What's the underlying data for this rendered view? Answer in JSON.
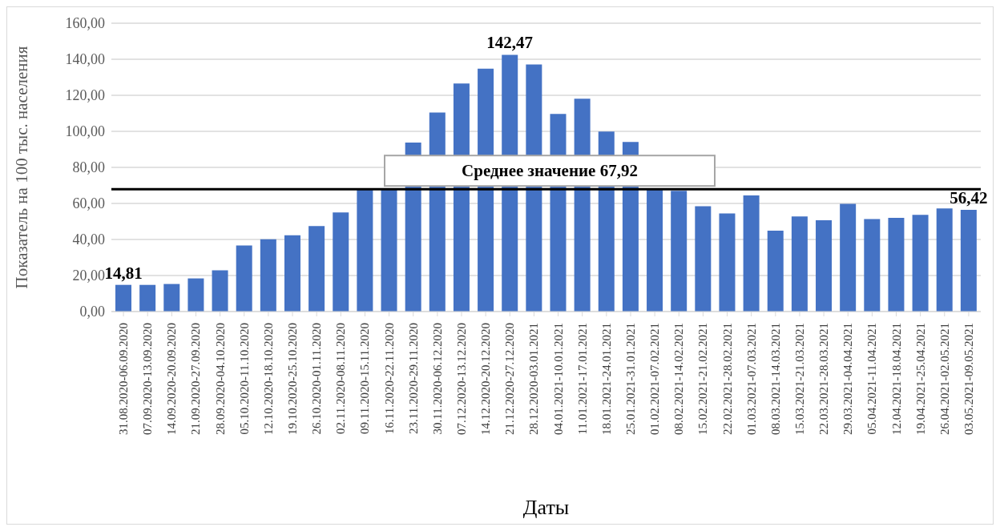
{
  "chart_data": {
    "type": "bar",
    "xlabel": "Даты",
    "ylabel": "Показатель на 100 тыс. населения",
    "categories": [
      "31.08.2020-06.09.2020",
      "07.09.2020-13.09.2020",
      "14.09.2020-20.09.2020",
      "21.09.2020-27.09.2020",
      "28.09.2020-04.10.2020",
      "05.10.2020-11.10.2020",
      "12.10.2020-18.10.2020",
      "19.10.2020-25.10.2020",
      "26.10.2020-01.11.2020",
      "02.11.2020-08.11.2020",
      "09.11.2020-15.11.2020",
      "16.11.2020-22.11.2020",
      "23.11.2020-29.11.2020",
      "30.11.2020-06.12.2020",
      "07.12.2020-13.12.2020",
      "14.12.2020-20.12.2020",
      "21.12.2020-27.12.2020",
      "28.12.2020-03.01.2021",
      "04.01.2021-10.01.2021",
      "11.01.2021-17.01.2021",
      "18.01.2021-24.01.2021",
      "25.01.2021-31.01.2021",
      "01.02.2021-07.02.2021",
      "08.02.2021-14.02.2021",
      "15.02.2021-21.02.2021",
      "22.02.2021-28.02.2021",
      "01.03.2021-07.03.2021",
      "08.03.2021-14.03.2021",
      "15.03.2021-21.03.2021",
      "22.03.2021-28.03.2021",
      "29.03.2021-04.04.2021",
      "05.04.2021-11.04.2021",
      "12.04.2021-18.04.2021",
      "19.04.2021-25.04.2021",
      "26.04.2021-02.05.2021",
      "03.05.2021-09.05.2021"
    ],
    "values": [
      14.81,
      14.8,
      15.3,
      18.4,
      22.9,
      36.7,
      40.1,
      42.3,
      47.4,
      55,
      68.2,
      68,
      93.8,
      110.5,
      126.6,
      134.8,
      142.47,
      137.1,
      109.7,
      118.1,
      99.9,
      94.1,
      68,
      67,
      58.4,
      54.5,
      64.5,
      44.9,
      52.8,
      50.7,
      59.8,
      51.3,
      52,
      53.7,
      57.2,
      56.42
    ],
    "value_labels": [
      "14,81",
      null,
      null,
      null,
      null,
      null,
      null,
      null,
      null,
      null,
      null,
      null,
      null,
      null,
      null,
      null,
      "142,47",
      null,
      null,
      null,
      null,
      null,
      null,
      null,
      null,
      null,
      null,
      null,
      null,
      null,
      null,
      null,
      null,
      null,
      null,
      "56,42"
    ],
    "color": "#4472c4",
    "ylim": [
      0,
      160
    ],
    "yticks": [
      {
        "value": 0,
        "label": "0,00"
      },
      {
        "value": 20,
        "label": "20,00"
      },
      {
        "value": 40,
        "label": "40,00"
      },
      {
        "value": 60,
        "label": "60,00"
      },
      {
        "value": 80,
        "label": "80,00"
      },
      {
        "value": 100,
        "label": "100,00"
      },
      {
        "value": 120,
        "label": "120,00"
      },
      {
        "value": 140,
        "label": "140,00"
      },
      {
        "value": 160,
        "label": "160,00"
      }
    ],
    "grid": "y",
    "ref_lines": [
      {
        "axis": "y",
        "value": 67.92,
        "label": "Среднее значение 67,92",
        "color": "#000000"
      }
    ]
  }
}
